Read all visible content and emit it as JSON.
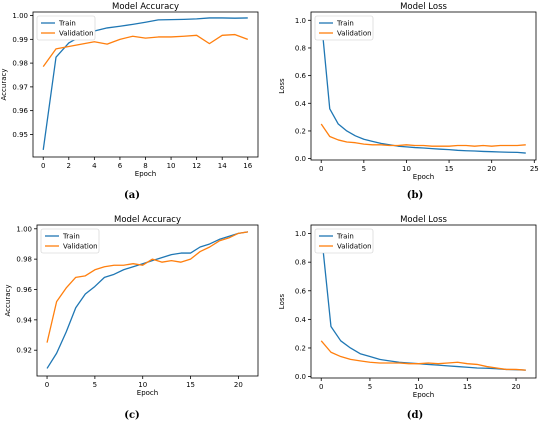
{
  "colors": {
    "train": "#1f77b4",
    "validation": "#ff7f0e"
  },
  "chart_data": [
    {
      "type": "line",
      "panel": "(a)",
      "title": "Model Accuracy",
      "xlabel": "Epoch",
      "ylabel": "Accuracy",
      "xlim": [
        -0.8,
        16.8
      ],
      "ylim": [
        0.9405,
        1.0015
      ],
      "xticks": [
        0,
        2,
        4,
        6,
        8,
        10,
        12,
        14,
        16
      ],
      "yticks": [
        0.95,
        0.96,
        0.97,
        0.98,
        0.99,
        1.0
      ],
      "ytick_labels": [
        "0.95",
        "0.96",
        "0.97",
        "0.98",
        "0.99",
        "1.00"
      ],
      "legend": "upper-left",
      "x": [
        0,
        1,
        2,
        3,
        4,
        5,
        6,
        7,
        8,
        9,
        10,
        11,
        12,
        13,
        14,
        15,
        16
      ],
      "series": [
        {
          "name": "Train",
          "color_key": "train",
          "values": [
            0.9435,
            0.9825,
            0.9885,
            0.9915,
            0.9935,
            0.9948,
            0.9955,
            0.9963,
            0.9972,
            0.9982,
            0.9983,
            0.9984,
            0.9986,
            0.999,
            0.999,
            0.9989,
            0.999
          ]
        },
        {
          "name": "Validation",
          "color_key": "validation",
          "values": [
            0.9785,
            0.986,
            0.987,
            0.988,
            0.989,
            0.988,
            0.99,
            0.9913,
            0.9905,
            0.991,
            0.991,
            0.9913,
            0.9917,
            0.9882,
            0.9917,
            0.992,
            0.99
          ]
        }
      ]
    },
    {
      "type": "line",
      "panel": "(b)",
      "title": "Model Loss",
      "xlabel": "Epoch",
      "ylabel": "Loss",
      "xlim": [
        -1.2,
        25.2
      ],
      "ylim": [
        -0.01,
        1.06
      ],
      "xticks": [
        0,
        5,
        10,
        15,
        20,
        25
      ],
      "yticks": [
        0.0,
        0.2,
        0.4,
        0.6,
        0.8,
        1.0
      ],
      "ytick_labels": [
        "0.0",
        "0.2",
        "0.4",
        "0.6",
        "0.8",
        "1.0"
      ],
      "legend": "upper-left",
      "x": [
        0,
        1,
        2,
        3,
        4,
        5,
        6,
        7,
        8,
        9,
        10,
        11,
        12,
        13,
        14,
        15,
        16,
        17,
        18,
        19,
        20,
        21,
        22,
        23,
        24
      ],
      "series": [
        {
          "name": "Train",
          "color_key": "train",
          "values": [
            1.01,
            0.36,
            0.25,
            0.2,
            0.165,
            0.14,
            0.125,
            0.11,
            0.1,
            0.09,
            0.085,
            0.08,
            0.077,
            0.072,
            0.068,
            0.065,
            0.06,
            0.057,
            0.055,
            0.052,
            0.05,
            0.048,
            0.046,
            0.045,
            0.04
          ]
        },
        {
          "name": "Validation",
          "color_key": "validation",
          "values": [
            0.25,
            0.16,
            0.135,
            0.12,
            0.115,
            0.105,
            0.1,
            0.1,
            0.095,
            0.095,
            0.1,
            0.095,
            0.095,
            0.09,
            0.09,
            0.09,
            0.095,
            0.095,
            0.09,
            0.095,
            0.09,
            0.095,
            0.095,
            0.095,
            0.1
          ]
        }
      ]
    },
    {
      "type": "line",
      "panel": "(c)",
      "title": "Model Accuracy",
      "xlabel": "Epoch",
      "ylabel": "Accuracy",
      "xlim": [
        -1.05,
        22.05
      ],
      "ylim": [
        0.903,
        1.0025
      ],
      "xticks": [
        0,
        5,
        10,
        15,
        20
      ],
      "yticks": [
        0.92,
        0.94,
        0.96,
        0.98,
        1.0
      ],
      "ytick_labels": [
        "0.92",
        "0.94",
        "0.96",
        "0.98",
        "1.00"
      ],
      "legend": "upper-left",
      "x": [
        0,
        1,
        2,
        3,
        4,
        5,
        6,
        7,
        8,
        9,
        10,
        11,
        12,
        13,
        14,
        15,
        16,
        17,
        18,
        19,
        20,
        21
      ],
      "series": [
        {
          "name": "Train",
          "color_key": "train",
          "values": [
            0.908,
            0.918,
            0.932,
            0.948,
            0.957,
            0.962,
            0.968,
            0.97,
            0.973,
            0.975,
            0.977,
            0.979,
            0.981,
            0.983,
            0.984,
            0.984,
            0.988,
            0.99,
            0.993,
            0.995,
            0.997,
            0.998
          ]
        },
        {
          "name": "Validation",
          "color_key": "validation",
          "values": [
            0.925,
            0.952,
            0.961,
            0.968,
            0.969,
            0.973,
            0.975,
            0.976,
            0.976,
            0.977,
            0.976,
            0.98,
            0.978,
            0.979,
            0.978,
            0.98,
            0.985,
            0.988,
            0.992,
            0.994,
            0.997,
            0.998
          ]
        }
      ]
    },
    {
      "type": "line",
      "panel": "(d)",
      "title": "Model Loss",
      "xlabel": "Epoch",
      "ylabel": "Loss",
      "xlim": [
        -1.05,
        22.05
      ],
      "ylim": [
        -0.01,
        1.06
      ],
      "xticks": [
        0,
        5,
        10,
        15,
        20
      ],
      "yticks": [
        0.0,
        0.2,
        0.4,
        0.6,
        0.8,
        1.0
      ],
      "ytick_labels": [
        "0.0",
        "0.2",
        "0.4",
        "0.6",
        "0.8",
        "1.0"
      ],
      "legend": "upper-left",
      "x": [
        0,
        1,
        2,
        3,
        4,
        5,
        6,
        7,
        8,
        9,
        10,
        11,
        12,
        13,
        14,
        15,
        16,
        17,
        18,
        19,
        20,
        21
      ],
      "series": [
        {
          "name": "Train",
          "color_key": "train",
          "values": [
            1.01,
            0.35,
            0.25,
            0.2,
            0.16,
            0.14,
            0.12,
            0.11,
            0.1,
            0.095,
            0.09,
            0.085,
            0.08,
            0.075,
            0.07,
            0.065,
            0.06,
            0.058,
            0.055,
            0.05,
            0.048,
            0.045
          ]
        },
        {
          "name": "Validation",
          "color_key": "validation",
          "values": [
            0.25,
            0.17,
            0.14,
            0.12,
            0.11,
            0.1,
            0.095,
            0.095,
            0.095,
            0.09,
            0.09,
            0.095,
            0.09,
            0.095,
            0.1,
            0.09,
            0.085,
            0.07,
            0.06,
            0.05,
            0.05,
            0.045
          ]
        }
      ]
    }
  ]
}
